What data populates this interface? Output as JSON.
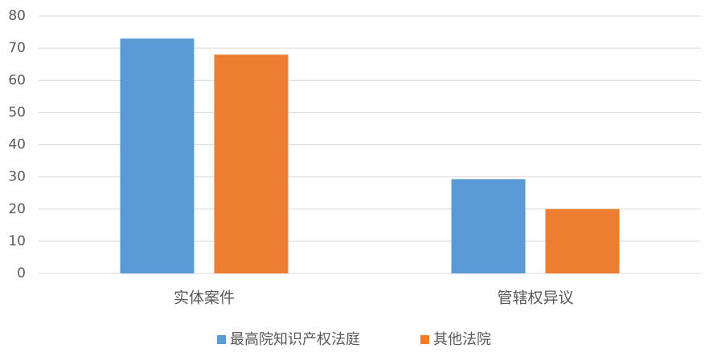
{
  "chart_data": {
    "type": "bar",
    "categories": [
      "实体案件",
      "管辖权异议"
    ],
    "series": [
      {
        "name": "最高院知识产权法庭",
        "color": "#5b9bd5",
        "values": [
          73,
          29.3
        ]
      },
      {
        "name": "其他法院",
        "color": "#ed7d31",
        "values": [
          68,
          20
        ]
      }
    ],
    "ylim": [
      0,
      80
    ],
    "yticks": [
      0,
      10,
      20,
      30,
      40,
      50,
      60,
      70,
      80
    ],
    "grid": true,
    "legend": "bottom"
  }
}
